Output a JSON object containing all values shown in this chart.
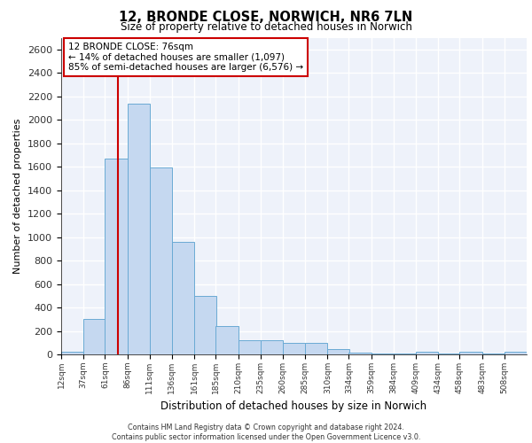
{
  "title_line1": "12, BRONDE CLOSE, NORWICH, NR6 7LN",
  "title_line2": "Size of property relative to detached houses in Norwich",
  "xlabel": "Distribution of detached houses by size in Norwich",
  "ylabel": "Number of detached properties",
  "annotation_line1": "12 BRONDE CLOSE: 76sqm",
  "annotation_line2": "← 14% of detached houses are smaller (1,097)",
  "annotation_line3": "85% of semi-detached houses are larger (6,576) →",
  "property_size": 76,
  "bin_starts": [
    12,
    37,
    61,
    86,
    111,
    136,
    161,
    185,
    210,
    235,
    260,
    285,
    310,
    334,
    359,
    384,
    409,
    434,
    458,
    483,
    508
  ],
  "bar_values": [
    20,
    300,
    1670,
    2140,
    1590,
    960,
    500,
    245,
    120,
    120,
    95,
    95,
    45,
    15,
    5,
    5,
    20,
    5,
    20,
    5,
    20
  ],
  "bar_color": "#c5d8f0",
  "bar_edge_color": "#6aaad4",
  "vline_color": "#cc0000",
  "annotation_box_color": "#cc0000",
  "background_color": "#eef2fa",
  "grid_color": "#ffffff",
  "ylim": [
    0,
    2700
  ],
  "yticks": [
    0,
    200,
    400,
    600,
    800,
    1000,
    1200,
    1400,
    1600,
    1800,
    2000,
    2200,
    2400,
    2600
  ],
  "footer_line1": "Contains HM Land Registry data © Crown copyright and database right 2024.",
  "footer_line2": "Contains public sector information licensed under the Open Government Licence v3.0."
}
